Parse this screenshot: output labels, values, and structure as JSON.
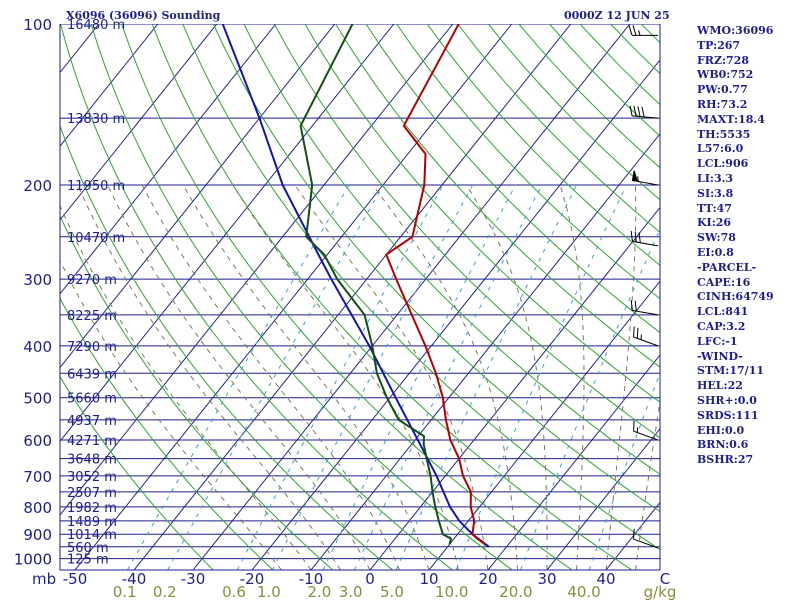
{
  "header": {
    "station_title": "X6096 (36096) Sounding",
    "datetime": "0000Z 12 JUN 25"
  },
  "indices": [
    "WMO:36096",
    "TP:267",
    "FRZ:728",
    "WB0:752",
    "PW:0.77",
    "RH:73.2",
    "MAXT:18.4",
    "TH:5535",
    "L57:6.0",
    "LCL:906",
    "LI:3.3",
    "SI:3.8",
    "TT:47",
    "KI:26",
    "SW:78",
    "EI:0.8",
    "-PARCEL-",
    "CAPE:16",
    "CINH:64749",
    "LCL:841",
    "CAP:3.2",
    "LFC:-1",
    "-WIND-",
    "STM:17/11",
    "HEL:22",
    "SHR+:0.0",
    "SRDS:111",
    "EHI:0.0",
    "BRN:0.6",
    "BSHR:27"
  ],
  "colors": {
    "background": "#ffffff",
    "text": "#1e1e8c",
    "isobar": "#1e1e8c",
    "isotherm": "#1e1e8c",
    "dry_adiabat": "#2ea62e",
    "moist_adiabat": "#7a7a5a",
    "mixing_ratio": "#3a9ee0",
    "temperature": "#b40000",
    "dewpoint": "#145014",
    "parcel": "#1414b4",
    "axis_label": "#1e1e8c",
    "mixing_ratio_label": "#8c8c3c"
  },
  "chart_data": {
    "type": "skew-t log-p sounding",
    "y_unit": "mb",
    "x_unit": "C",
    "mixing_ratio_unit": "g/kg",
    "pressure_ticks": [
      100,
      200,
      300,
      400,
      500,
      600,
      700,
      800,
      900,
      1000
    ],
    "temperature_ticks": [
      -50,
      -40,
      -30,
      -20,
      -10,
      0,
      10,
      20,
      30,
      40
    ],
    "mixing_ratio_labels": [
      "0.1",
      "0.2",
      "0.6",
      "1.0",
      "2.0",
      "3.0",
      "5.0",
      "10.0",
      "20.0",
      "40.0"
    ],
    "height_labels": [
      {
        "p": 100,
        "text": "16480 m"
      },
      {
        "p": 150,
        "text": "13830 m"
      },
      {
        "p": 200,
        "text": "11950 m"
      },
      {
        "p": 250,
        "text": "10470 m"
      },
      {
        "p": 300,
        "text": "9270 m"
      },
      {
        "p": 350,
        "text": "8225 m"
      },
      {
        "p": 400,
        "text": "7290 m"
      },
      {
        "p": 450,
        "text": "6439 m"
      },
      {
        "p": 500,
        "text": "5660 m"
      },
      {
        "p": 550,
        "text": "4937 m"
      },
      {
        "p": 600,
        "text": "4271 m"
      },
      {
        "p": 650,
        "text": "3648 m"
      },
      {
        "p": 700,
        "text": "3052 m"
      },
      {
        "p": 750,
        "text": "2507 m"
      },
      {
        "p": 800,
        "text": "1982 m"
      },
      {
        "p": 850,
        "text": "1489 m"
      },
      {
        "p": 900,
        "text": "1014 m"
      },
      {
        "p": 950,
        "text": "560 m"
      },
      {
        "p": 1000,
        "text": "125 m"
      }
    ],
    "temperature_profile": [
      {
        "p": 940,
        "t": 16.0
      },
      {
        "p": 918,
        "t": 14.0
      },
      {
        "p": 900,
        "t": 12.5
      },
      {
        "p": 850,
        "t": 11.0
      },
      {
        "p": 800,
        "t": 8.5
      },
      {
        "p": 750,
        "t": 6.5
      },
      {
        "p": 700,
        "t": 3.0
      },
      {
        "p": 650,
        "t": 0.0
      },
      {
        "p": 600,
        "t": -4.0
      },
      {
        "p": 550,
        "t": -7.5
      },
      {
        "p": 500,
        "t": -11.0
      },
      {
        "p": 450,
        "t": -15.5
      },
      {
        "p": 400,
        "t": -21.0
      },
      {
        "p": 350,
        "t": -27.5
      },
      {
        "p": 300,
        "t": -35.0
      },
      {
        "p": 270,
        "t": -40.0
      },
      {
        "p": 250,
        "t": -38.0
      },
      {
        "p": 200,
        "t": -43.0
      },
      {
        "p": 175,
        "t": -47.0
      },
      {
        "p": 155,
        "t": -54.5
      },
      {
        "p": 100,
        "t": -59.0
      }
    ],
    "dewpoint_profile": [
      {
        "p": 940,
        "t": 10.0
      },
      {
        "p": 918,
        "t": 9.5
      },
      {
        "p": 900,
        "t": 7.5
      },
      {
        "p": 850,
        "t": 5.0
      },
      {
        "p": 800,
        "t": 2.5
      },
      {
        "p": 750,
        "t": 0.0
      },
      {
        "p": 700,
        "t": -2.5
      },
      {
        "p": 650,
        "t": -5.5
      },
      {
        "p": 610,
        "t": -8.0
      },
      {
        "p": 590,
        "t": -9.0
      },
      {
        "p": 550,
        "t": -15.5
      },
      {
        "p": 500,
        "t": -20.5
      },
      {
        "p": 450,
        "t": -25.5
      },
      {
        "p": 400,
        "t": -30.0
      },
      {
        "p": 350,
        "t": -35.5
      },
      {
        "p": 300,
        "t": -45.0
      },
      {
        "p": 270,
        "t": -50.5
      },
      {
        "p": 250,
        "t": -56.0
      },
      {
        "p": 200,
        "t": -62.0
      },
      {
        "p": 155,
        "t": -72.0
      },
      {
        "p": 100,
        "t": -77.0
      }
    ],
    "parcel_path": [
      {
        "p": 950,
        "t": 17.0
      },
      {
        "p": 900,
        "t": 12.5
      },
      {
        "p": 850,
        "t": 8.5
      },
      {
        "p": 800,
        "t": 5.0
      },
      {
        "p": 700,
        "t": -1.5
      },
      {
        "p": 600,
        "t": -9.5
      },
      {
        "p": 500,
        "t": -19.0
      },
      {
        "p": 400,
        "t": -30.5
      },
      {
        "p": 300,
        "t": -46.0
      },
      {
        "p": 270,
        "t": -51.5
      },
      {
        "p": 200,
        "t": -67.0
      },
      {
        "p": 150,
        "t": -80.0
      },
      {
        "p": 100,
        "t": -99.0
      }
    ],
    "wind_barbs": [
      {
        "p": 955,
        "dir": 290,
        "spd": 10
      },
      {
        "p": 600,
        "dir": 290,
        "spd": 15
      },
      {
        "p": 400,
        "dir": 290,
        "spd": 25
      },
      {
        "p": 350,
        "dir": 280,
        "spd": 20
      },
      {
        "p": 260,
        "dir": 280,
        "spd": 30
      },
      {
        "p": 200,
        "dir": 280,
        "spd": 55
      },
      {
        "p": 150,
        "dir": 275,
        "spd": 40
      },
      {
        "p": 105,
        "dir": 270,
        "spd": 25
      }
    ]
  }
}
